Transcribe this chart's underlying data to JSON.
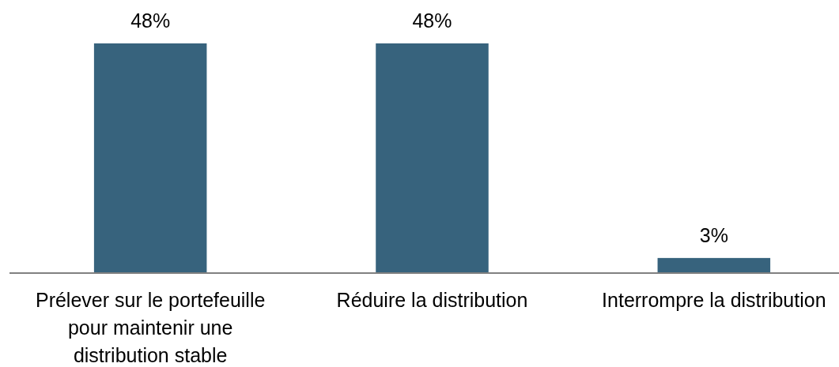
{
  "chart_data": {
    "type": "bar",
    "categories": [
      "Prélever sur le portefeuille pour maintenir une distribution stable",
      "Réduire la distribution",
      "Interrompre la distribution"
    ],
    "values": [
      48,
      48,
      3
    ],
    "color": "#37637d",
    "value_labels": [
      "48%",
      "48%",
      "3%"
    ]
  }
}
